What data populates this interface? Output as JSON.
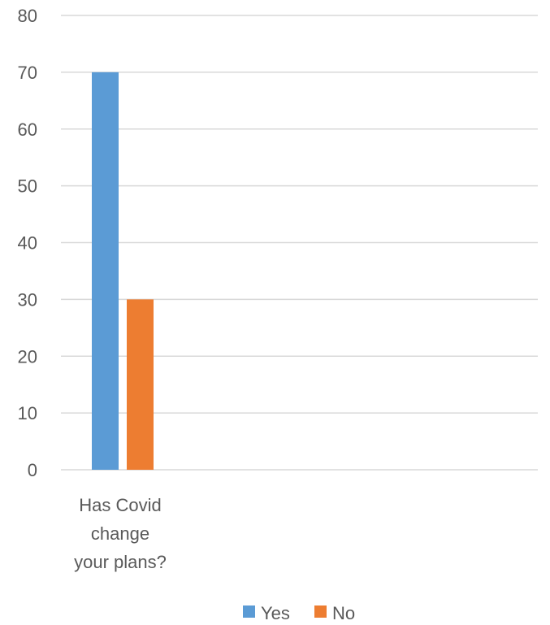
{
  "chart_data": {
    "type": "bar",
    "categories": [
      "Has Covid change your plans?"
    ],
    "category_label_lines": [
      [
        "Has Covid",
        "change",
        "your plans?"
      ]
    ],
    "series": [
      {
        "name": "Yes",
        "values": [
          70
        ],
        "color": "#5b9bd5"
      },
      {
        "name": "No",
        "values": [
          30
        ],
        "color": "#ed7d31"
      }
    ],
    "title": "",
    "xlabel": "",
    "ylabel": "",
    "ylim": [
      0,
      80
    ],
    "yticks": [
      0,
      10,
      20,
      30,
      40,
      50,
      60,
      70,
      80
    ],
    "grid": true,
    "legend_position": "bottom",
    "gridline_color": "#d9d9d9",
    "text_color": "#595959"
  }
}
